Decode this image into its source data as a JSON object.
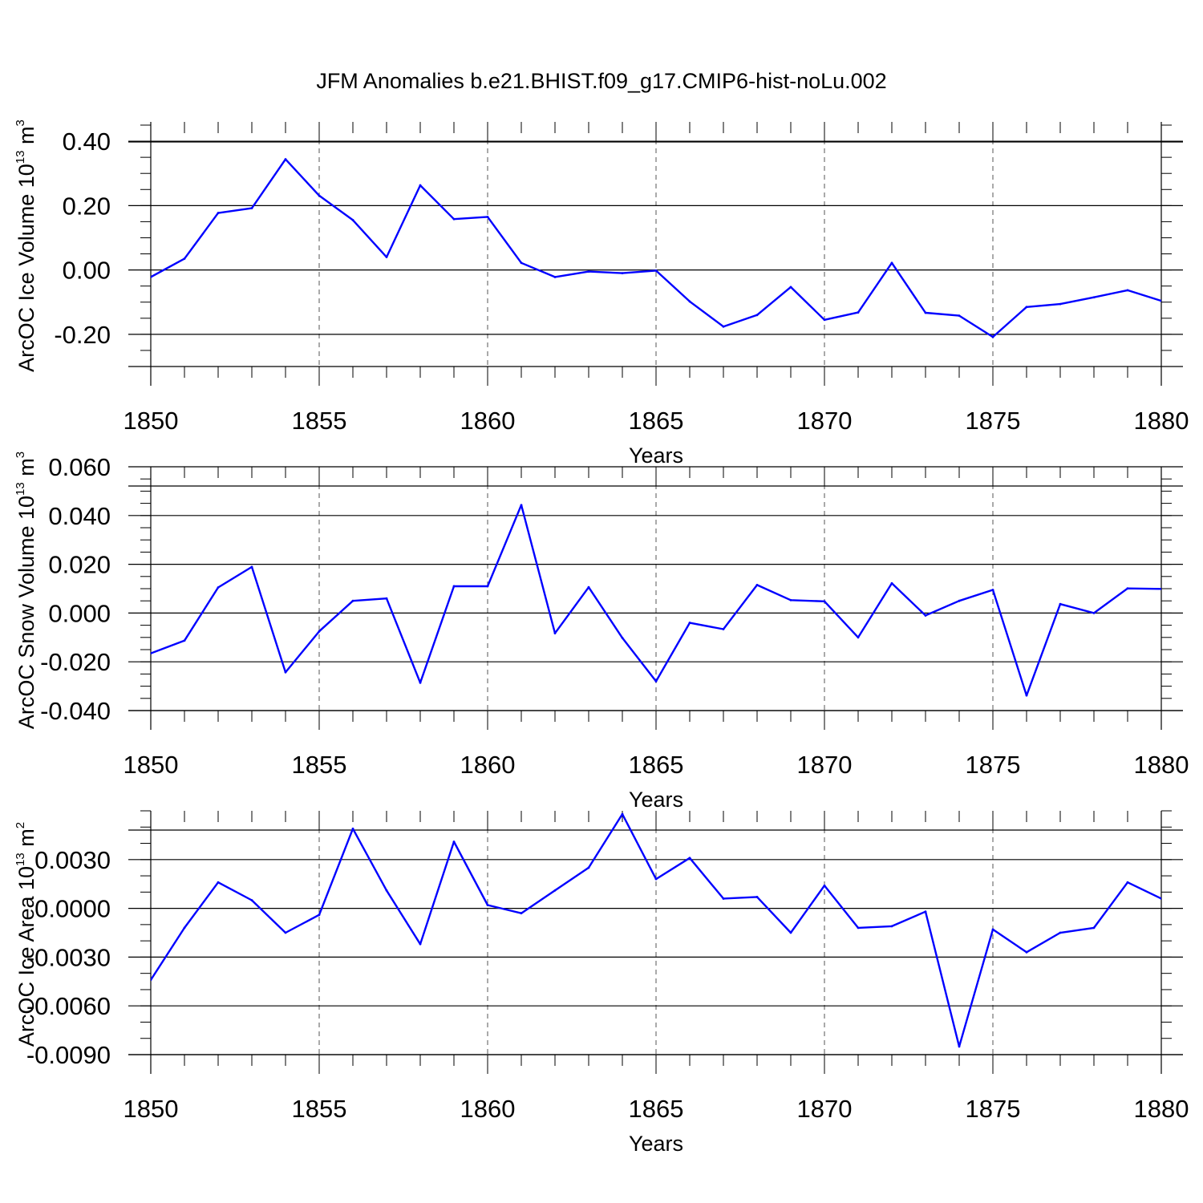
{
  "title": "JFM Anomalies b.e21.BHIST.f09_g17.CMIP6-hist-noLu.002",
  "line_color": "#0000ff",
  "chart_data": [
    {
      "type": "line",
      "name": "ice-volume",
      "xlabel": "Years",
      "ylabel": "ArcOC Ice Volume 10",
      "ylabel_exp": "13",
      "ylabel_unit": "m",
      "ylabel_unit_exp": "3",
      "xlim": [
        1850,
        1880
      ],
      "ylim": [
        -0.3,
        0.46
      ],
      "x_ticks": [
        "1850",
        "1855",
        "1860",
        "1865",
        "1870",
        "1875",
        "1880"
      ],
      "y_tick_values": [
        0.4,
        0.2,
        0.0,
        -0.2
      ],
      "y_tick_labels": [
        "0.40",
        "0.20",
        "0.00",
        "-0.20"
      ],
      "y_minor_step": 0.05,
      "x": [
        1850,
        1851,
        1852,
        1853,
        1854,
        1855,
        1856,
        1857,
        1858,
        1859,
        1860,
        1861,
        1862,
        1863,
        1864,
        1865,
        1866,
        1867,
        1868,
        1869,
        1870,
        1871,
        1872,
        1873,
        1874,
        1875,
        1876,
        1877,
        1878,
        1879,
        1880
      ],
      "values": [
        -0.022,
        0.035,
        0.177,
        0.192,
        0.344,
        0.231,
        0.155,
        0.04,
        0.263,
        0.158,
        0.165,
        0.022,
        -0.022,
        -0.005,
        -0.01,
        -0.002,
        -0.098,
        -0.176,
        -0.14,
        -0.053,
        -0.155,
        -0.132,
        0.022,
        -0.133,
        -0.142,
        -0.208,
        -0.115,
        -0.106,
        -0.085,
        -0.063,
        -0.096
      ]
    },
    {
      "type": "line",
      "name": "snow-volume",
      "xlabel": "Years",
      "ylabel": "ArcOC Snow Volume 10",
      "ylabel_exp": "13",
      "ylabel_unit": "m",
      "ylabel_unit_exp": "3",
      "xlim": [
        1850,
        1880
      ],
      "ylim": [
        -0.04,
        0.06
      ],
      "x_ticks": [
        "1850",
        "1855",
        "1860",
        "1865",
        "1870",
        "1875",
        "1880"
      ],
      "y_tick_values": [
        0.06,
        0.04,
        0.02,
        0.0,
        -0.02,
        -0.04
      ],
      "y_tick_labels": [
        "0.060",
        "0.040",
        "0.020",
        "0.000",
        "-0.020",
        "-0.040"
      ],
      "y_minor_step": 0.005,
      "x": [
        1850,
        1851,
        1852,
        1853,
        1854,
        1855,
        1856,
        1857,
        1858,
        1859,
        1860,
        1861,
        1862,
        1863,
        1864,
        1865,
        1866,
        1867,
        1868,
        1869,
        1870,
        1871,
        1872,
        1873,
        1874,
        1875,
        1876,
        1877,
        1878,
        1879,
        1880
      ],
      "values": [
        -0.0165,
        -0.0113,
        0.0105,
        0.0189,
        -0.0243,
        -0.0075,
        0.005,
        0.006,
        -0.0286,
        0.011,
        0.011,
        0.0443,
        -0.0083,
        0.0106,
        -0.0102,
        -0.028,
        -0.004,
        -0.0066,
        0.0115,
        0.0053,
        0.0048,
        -0.01,
        0.0122,
        -0.001,
        0.005,
        0.0095,
        -0.0338,
        0.0037,
        0.0,
        0.0101,
        0.0099
      ]
    },
    {
      "type": "line",
      "name": "ice-area",
      "xlabel": "Years",
      "ylabel": "ArcOC Ice Area 10",
      "ylabel_exp": "13",
      "ylabel_unit": "m",
      "ylabel_unit_exp": "2",
      "xlim": [
        1850,
        1880
      ],
      "ylim": [
        -0.009,
        0.006
      ],
      "x_ticks": [
        "1850",
        "1855",
        "1860",
        "1865",
        "1870",
        "1875",
        "1880"
      ],
      "y_tick_values": [
        0.003,
        0.0,
        -0.003,
        -0.006,
        -0.009
      ],
      "y_tick_labels": [
        "0.0030",
        "0.0000",
        "-0.0030",
        "-0.0060",
        "-0.0090"
      ],
      "y_minor_step": 0.001,
      "x": [
        1850,
        1851,
        1852,
        1853,
        1854,
        1855,
        1856,
        1857,
        1858,
        1859,
        1860,
        1861,
        1862,
        1863,
        1864,
        1865,
        1866,
        1867,
        1868,
        1869,
        1870,
        1871,
        1872,
        1873,
        1874,
        1875,
        1876,
        1877,
        1878,
        1879,
        1880
      ],
      "values": [
        -0.0044,
        -0.0012,
        0.0016,
        0.0005,
        -0.0015,
        -0.0004,
        0.0049,
        0.0011,
        -0.0022,
        0.0041,
        0.0002,
        -0.0003,
        0.0011,
        0.0025,
        0.0058,
        0.0018,
        0.0031,
        0.0006,
        0.0007,
        -0.0015,
        0.0014,
        -0.0012,
        -0.0011,
        -0.0002,
        -0.0085,
        -0.0013,
        -0.0027,
        -0.0015,
        -0.0012,
        0.0016,
        0.0006
      ]
    }
  ]
}
